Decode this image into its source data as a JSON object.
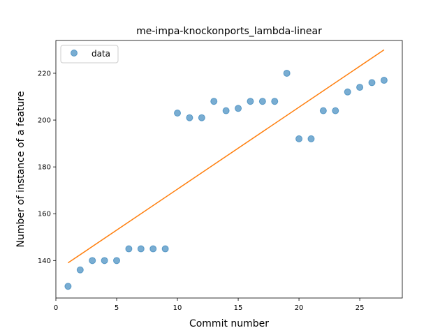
{
  "chart_data": {
    "type": "scatter",
    "title": "me-impa-knockonports_lambda-linear",
    "xlabel": "Commit number",
    "ylabel": "Number of instance of a feature",
    "xlim": [
      0,
      28.5
    ],
    "ylim": [
      124,
      234
    ],
    "xticks": [
      0,
      5,
      10,
      15,
      20,
      25
    ],
    "yticks": [
      140,
      160,
      180,
      200,
      220
    ],
    "grid": false,
    "legend_position": "top-left",
    "series": [
      {
        "name": "data",
        "kind": "scatter",
        "color": "#1f77b4",
        "x": [
          1,
          2,
          3,
          4,
          5,
          6,
          7,
          8,
          9,
          10,
          11,
          12,
          13,
          14,
          15,
          16,
          17,
          18,
          19,
          20,
          21,
          22,
          23,
          24,
          25,
          26,
          27
        ],
        "y": [
          129,
          136,
          140,
          140,
          140,
          145,
          145,
          145,
          145,
          203,
          201,
          201,
          208,
          204,
          205,
          208,
          208,
          208,
          220,
          192,
          192,
          204,
          204,
          212,
          214,
          216,
          217
        ]
      },
      {
        "kind": "line",
        "color": "#ff7f0e",
        "x": [
          1,
          27
        ],
        "y": [
          139,
          230
        ]
      }
    ]
  }
}
